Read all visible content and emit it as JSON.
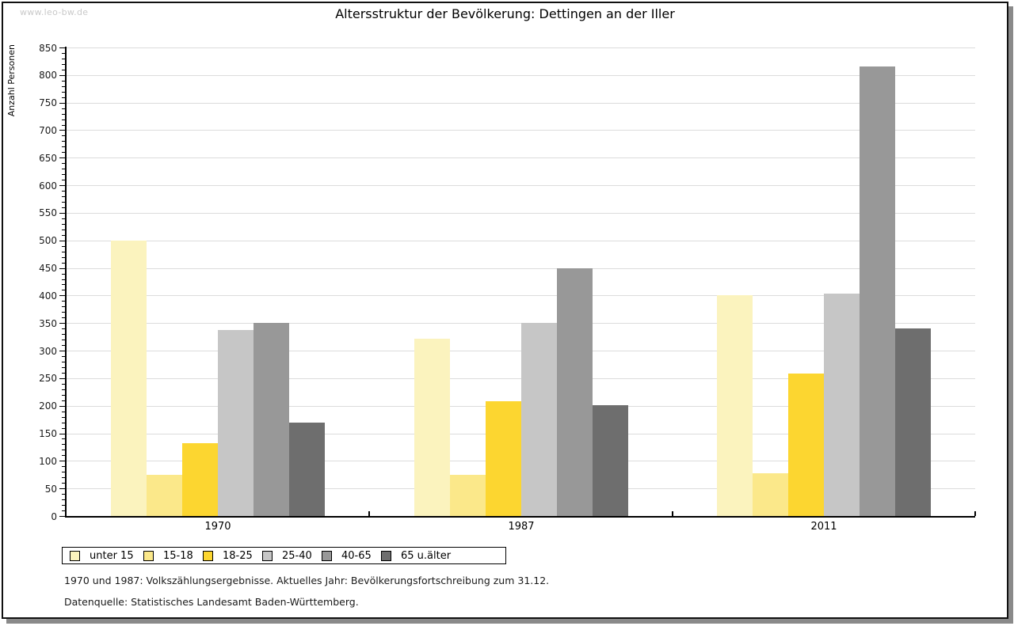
{
  "watermark": "www.leo-bw.de",
  "footer": {
    "line1": "1970 und 1987: Volkszählungsergebnisse. Aktuelles Jahr: Bevölkerungsfortschreibung zum 31.12.",
    "line2": "Datenquelle: Statistisches Landesamt Baden-Württemberg."
  },
  "chart_data": {
    "type": "bar",
    "title": "Altersstruktur der Bevölkerung: Dettingen an der Iller",
    "xlabel": "",
    "ylabel": "Anzahl Personen",
    "ylim": [
      0,
      850
    ],
    "ytick_step": 50,
    "ytick_minor_step": 10,
    "grid": true,
    "legend_position": "bottom-left",
    "categories": [
      "1970",
      "1987",
      "2011"
    ],
    "series": [
      {
        "name": "unter 15",
        "color": "#fbf3be",
        "values": [
          500,
          322,
          400
        ]
      },
      {
        "name": "15-18",
        "color": "#fbe88a",
        "values": [
          74,
          74,
          77
        ]
      },
      {
        "name": "18-25",
        "color": "#fcd630",
        "values": [
          132,
          208,
          259
        ]
      },
      {
        "name": "25-40",
        "color": "#c6c6c6",
        "values": [
          338,
          350,
          404
        ]
      },
      {
        "name": "40-65",
        "color": "#989898",
        "values": [
          350,
          450,
          815
        ]
      },
      {
        "name": "65 u.älter",
        "color": "#6e6e6e",
        "values": [
          170,
          201,
          340
        ]
      }
    ]
  }
}
